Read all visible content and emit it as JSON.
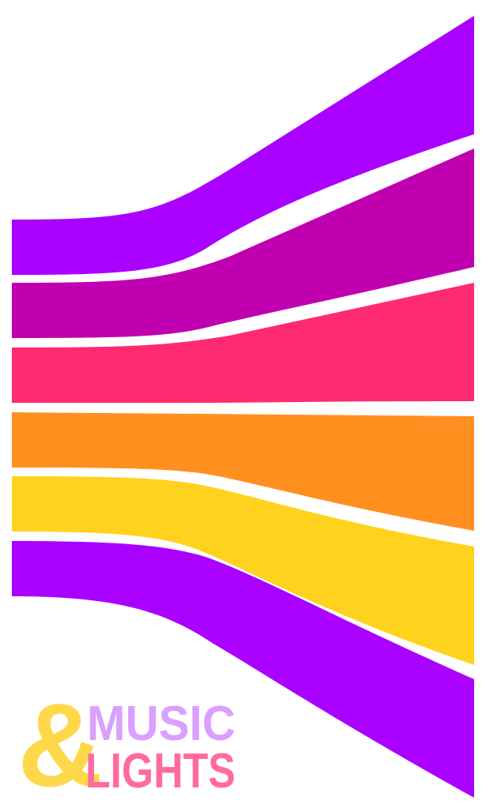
{
  "logo": {
    "ampersand": "&",
    "line1": "MUSIC",
    "line2": "LIGHTS"
  }
}
